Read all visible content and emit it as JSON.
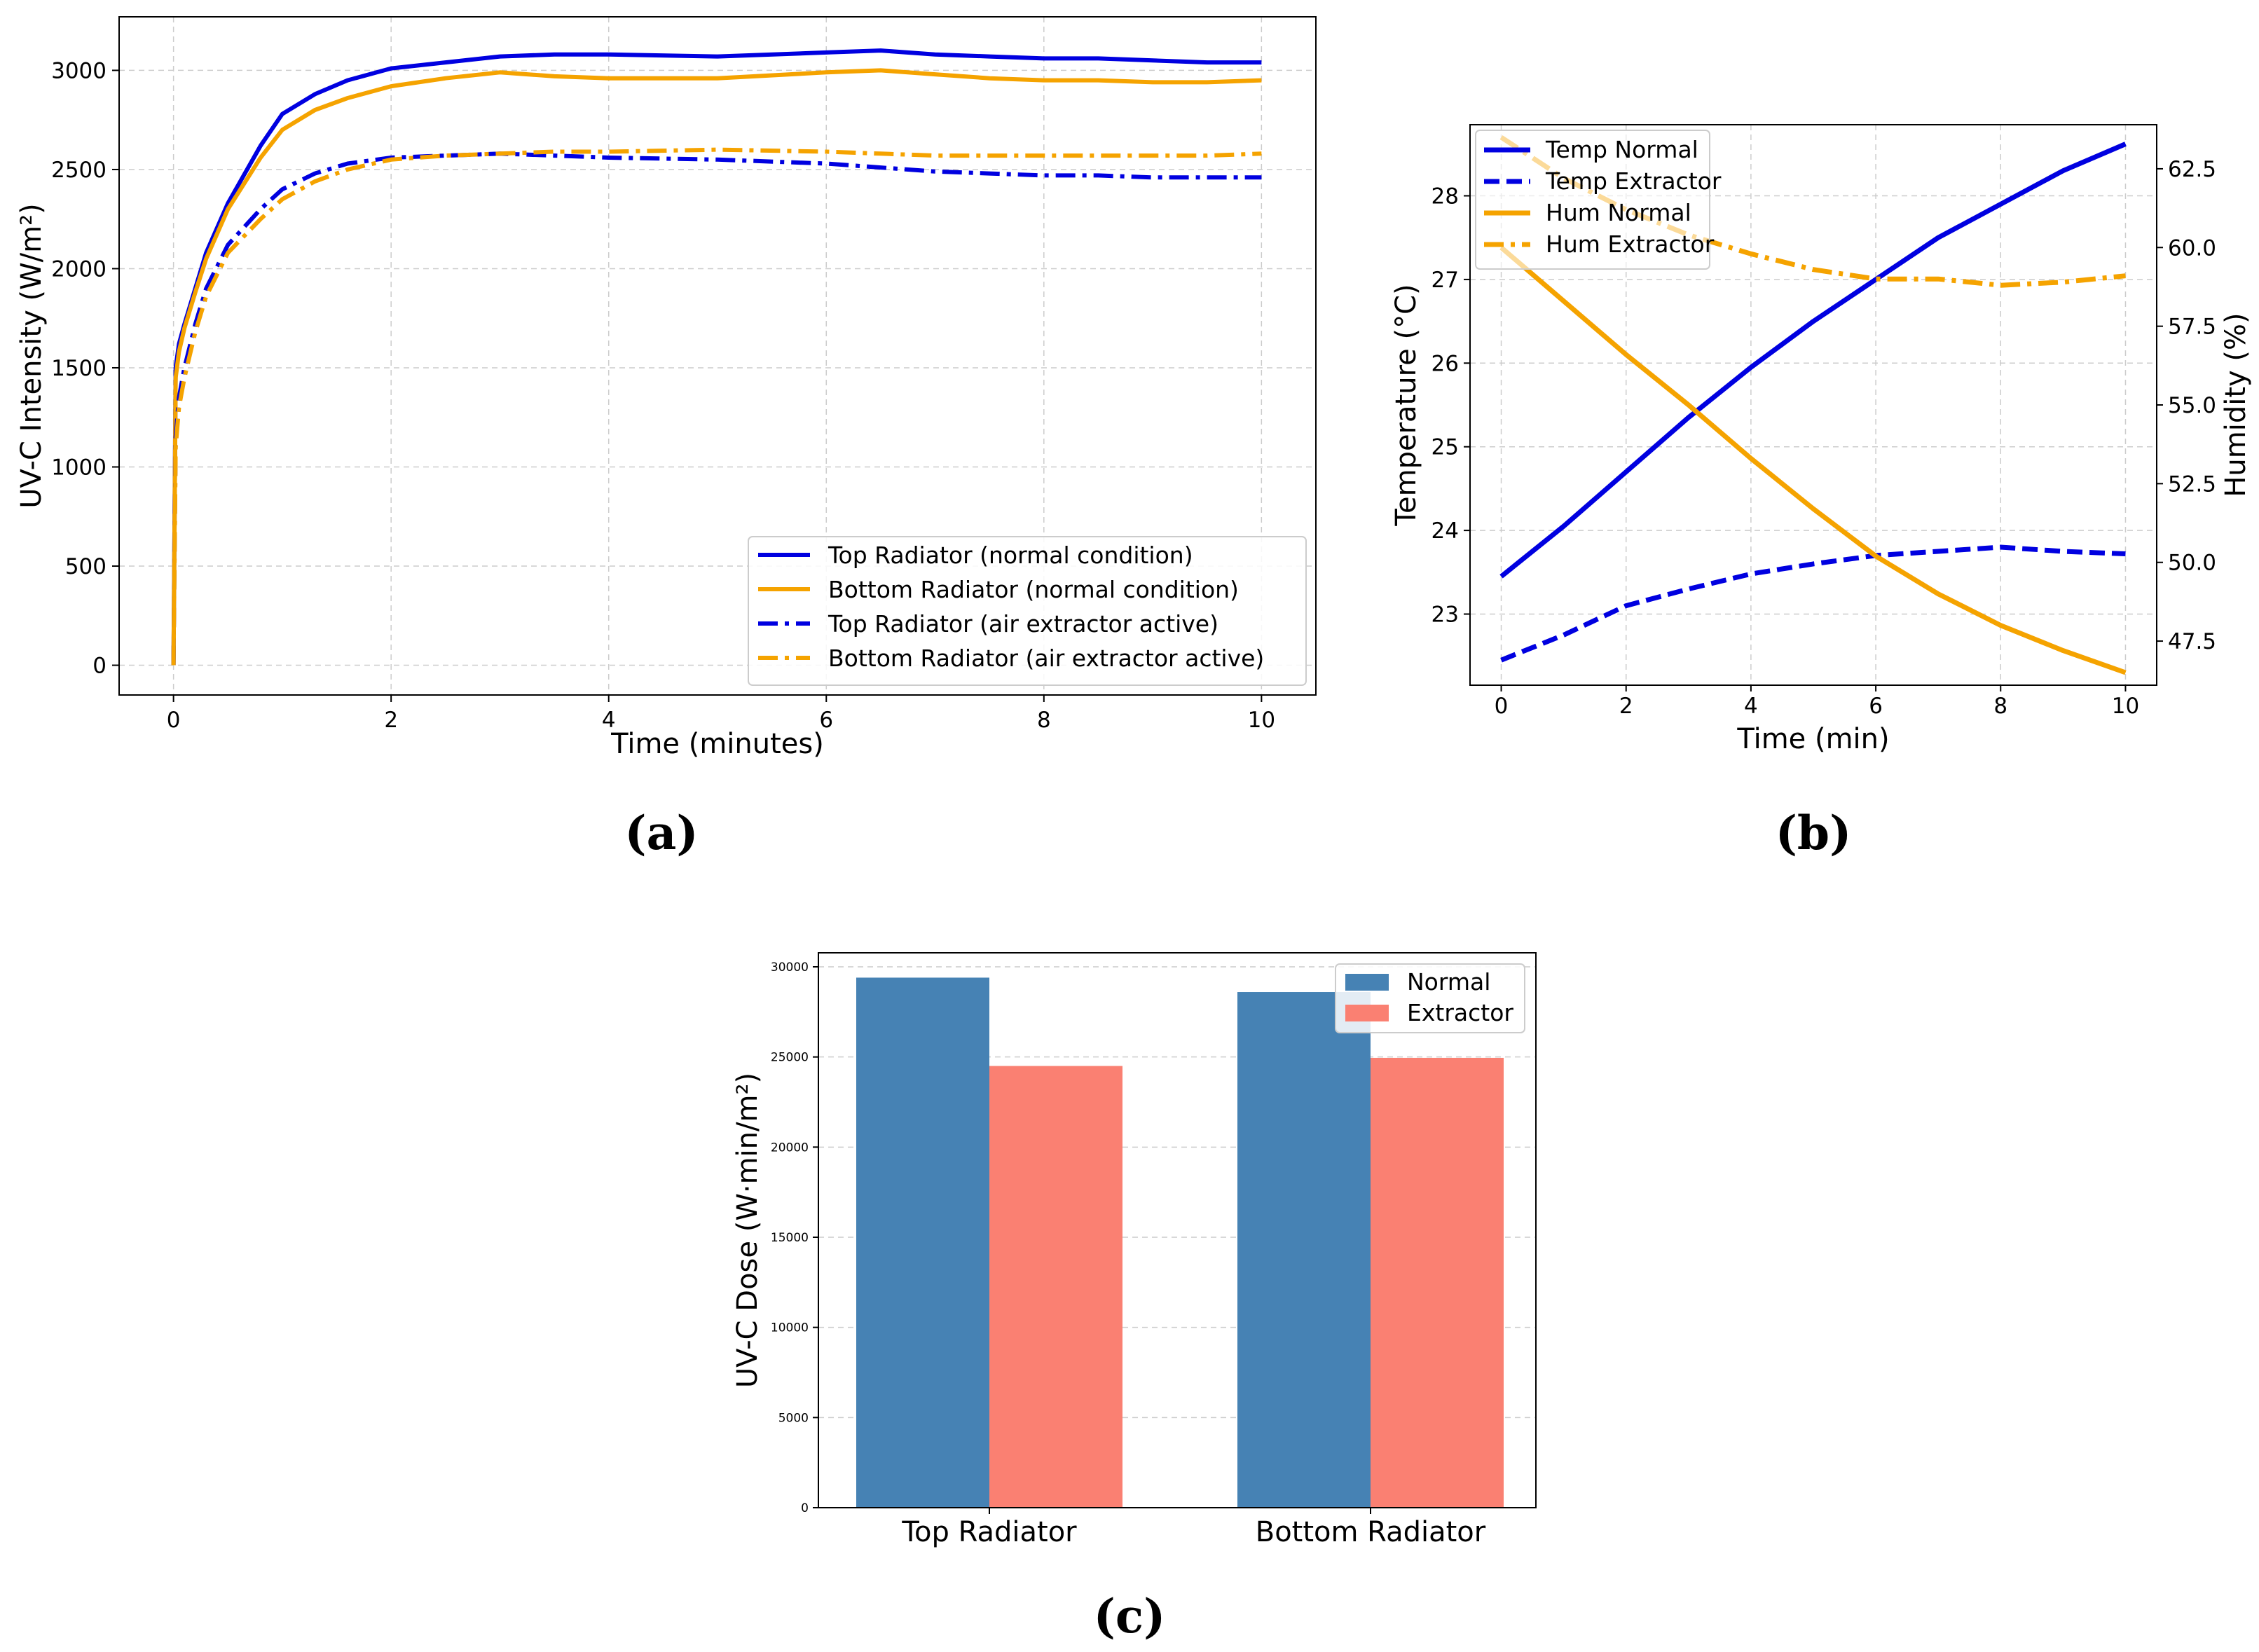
{
  "figure": {
    "panel_labels": [
      "(a)",
      "(b)",
      "(c)"
    ]
  },
  "colors": {
    "blue": "#0000e0",
    "orange": "#f5a300",
    "steelblue": "#4682b4",
    "salmon": "#fa8072"
  },
  "chart_data": [
    {
      "id": "a",
      "type": "line",
      "title": "",
      "xlabel": "Time (minutes)",
      "ylabel": "UV-C Intensity (W/m²)",
      "xlim": [
        -0.5,
        10.5
      ],
      "ylim": [
        -150,
        3270
      ],
      "xticks": [
        0,
        2,
        4,
        6,
        8,
        10
      ],
      "yticks": [
        0,
        500,
        1000,
        1500,
        2000,
        2500,
        3000
      ],
      "grid": true,
      "legend_position": "lower-right",
      "x": [
        0,
        0.02,
        0.05,
        0.1,
        0.2,
        0.3,
        0.5,
        0.8,
        1.0,
        1.3,
        1.6,
        2.0,
        2.5,
        3.0,
        3.5,
        4.0,
        5.0,
        6.0,
        6.5,
        7.0,
        7.5,
        8.0,
        8.5,
        9.0,
        9.5,
        10.0
      ],
      "series": [
        {
          "name": "Top Radiator (normal condition)",
          "color_key": "blue",
          "style": "solid",
          "values": [
            0,
            1500,
            1620,
            1720,
            1900,
            2080,
            2330,
            2620,
            2780,
            2880,
            2950,
            3010,
            3040,
            3070,
            3080,
            3080,
            3070,
            3090,
            3100,
            3080,
            3070,
            3060,
            3060,
            3050,
            3040,
            3040
          ]
        },
        {
          "name": "Bottom Radiator (normal condition)",
          "color_key": "orange",
          "style": "solid",
          "values": [
            0,
            1450,
            1580,
            1700,
            1880,
            2050,
            2300,
            2560,
            2700,
            2800,
            2860,
            2920,
            2960,
            2990,
            2970,
            2960,
            2960,
            2990,
            3000,
            2980,
            2960,
            2950,
            2950,
            2940,
            2940,
            2950
          ]
        },
        {
          "name": "Top Radiator (air extractor active)",
          "color_key": "blue",
          "style": "dashdot",
          "values": [
            0,
            1150,
            1350,
            1500,
            1720,
            1900,
            2120,
            2300,
            2400,
            2480,
            2530,
            2560,
            2570,
            2580,
            2570,
            2560,
            2550,
            2530,
            2510,
            2490,
            2480,
            2470,
            2470,
            2460,
            2460,
            2460
          ]
        },
        {
          "name": "Bottom Radiator (air extractor active)",
          "color_key": "orange",
          "style": "dashdot",
          "values": [
            0,
            1100,
            1300,
            1450,
            1680,
            1860,
            2080,
            2250,
            2350,
            2440,
            2500,
            2550,
            2570,
            2580,
            2590,
            2590,
            2600,
            2590,
            2580,
            2570,
            2570,
            2570,
            2570,
            2570,
            2570,
            2580
          ]
        }
      ]
    },
    {
      "id": "b",
      "type": "line",
      "title": "",
      "xlabel": "Time (min)",
      "ylabel": "Temperature (°C)",
      "ylabel_right": "Humidity (%)",
      "xlim": [
        -0.5,
        10.5
      ],
      "ylim": [
        22.15,
        28.85
      ],
      "ylim_right": [
        46.1,
        63.9
      ],
      "xticks": [
        0,
        2,
        4,
        6,
        8,
        10
      ],
      "yticks": [
        23,
        24,
        25,
        26,
        27,
        28
      ],
      "yticks_right": [
        "47.5",
        "50.0",
        "52.5",
        "55.0",
        "57.5",
        "60.0",
        "62.5"
      ],
      "grid": true,
      "legend_position": "top-left",
      "x": [
        0,
        1,
        2,
        3,
        4,
        5,
        6,
        7,
        8,
        9,
        10
      ],
      "series": [
        {
          "name": "Temp Normal",
          "axis": "left",
          "color_key": "blue",
          "style": "solid",
          "values": [
            23.45,
            24.05,
            24.7,
            25.35,
            25.95,
            26.5,
            27.0,
            27.5,
            27.9,
            28.3,
            28.62
          ]
        },
        {
          "name": "Temp Extractor",
          "axis": "left",
          "color_key": "blue",
          "style": "dashed",
          "values": [
            22.45,
            22.75,
            23.1,
            23.3,
            23.48,
            23.6,
            23.7,
            23.75,
            23.8,
            23.75,
            23.72
          ]
        },
        {
          "name": "Hum Normal",
          "axis": "right",
          "color_key": "orange",
          "style": "solid",
          "values": [
            60.0,
            58.3,
            56.6,
            55.0,
            53.3,
            51.7,
            50.2,
            49.0,
            48.0,
            47.2,
            46.5
          ]
        },
        {
          "name": "Hum Extractor",
          "axis": "right",
          "color_key": "orange",
          "style": "dashdot",
          "values": [
            63.5,
            62.2,
            61.2,
            60.4,
            59.8,
            59.3,
            59.0,
            59.0,
            58.8,
            58.9,
            59.1
          ]
        }
      ]
    },
    {
      "id": "c",
      "type": "bar",
      "title": "",
      "xlabel": "",
      "ylabel": "UV-C Dose (W·min/m²)",
      "ylim": [
        0,
        30000
      ],
      "yticks": [
        0,
        5000,
        10000,
        15000,
        20000,
        25000,
        30000
      ],
      "grid": true,
      "legend_position": "top-right",
      "categories": [
        "Top Radiator",
        "Bottom Radiator"
      ],
      "series": [
        {
          "name": "Normal",
          "color_key": "steelblue",
          "values": [
            29400,
            28600
          ]
        },
        {
          "name": "Extractor",
          "color_key": "salmon",
          "values": [
            24500,
            24950
          ]
        }
      ]
    }
  ]
}
